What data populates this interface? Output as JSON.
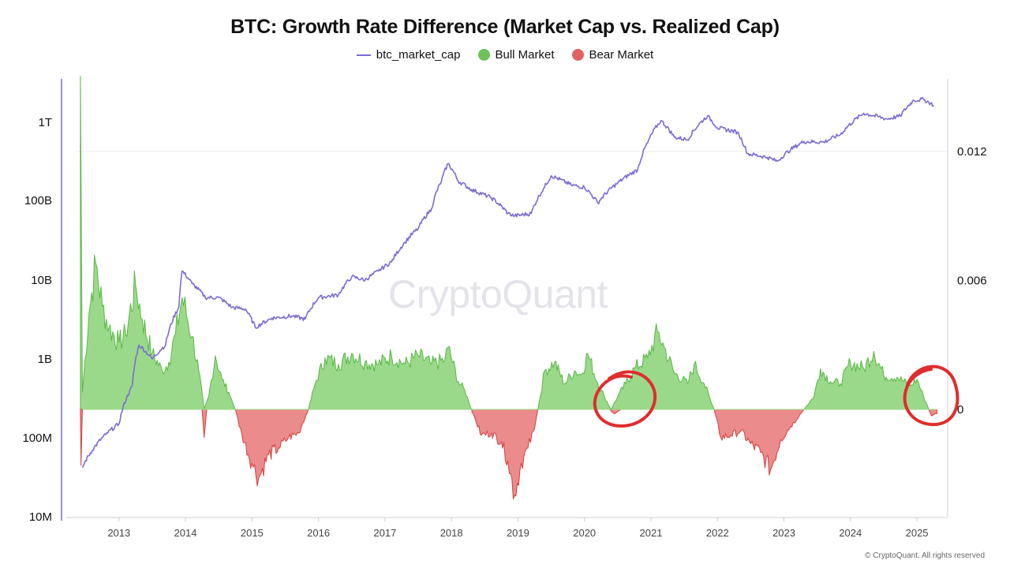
{
  "chart_data": {
    "type": "line",
    "title": "BTC: Growth Rate Difference (Market Cap vs. Realized Cap)",
    "legend": [
      {
        "name": "btc_market_cap",
        "color": "#7b6bd2",
        "marker": "line"
      },
      {
        "name": "Bull Market",
        "color": "#6cc35a",
        "marker": "dot"
      },
      {
        "name": "Bear Market",
        "color": "#e06262",
        "marker": "dot"
      }
    ],
    "x_ticks": [
      "2013",
      "2014",
      "2015",
      "2016",
      "2017",
      "2018",
      "2019",
      "2020",
      "2021",
      "2022",
      "2023",
      "2024",
      "2025"
    ],
    "x_range": [
      2012.35,
      2025.45
    ],
    "left_axis": {
      "scale": "log",
      "ticks": [
        "1T",
        "100B",
        "10B",
        "1B",
        "100M",
        "10M"
      ],
      "range": [
        10000000.0,
        3000000000000.0
      ]
    },
    "right_axis": {
      "ticks": [
        "0.012",
        "0.006",
        "0"
      ],
      "range": [
        -0.005,
        0.0155
      ]
    },
    "series": [
      {
        "name": "btc_market_cap",
        "points": [
          [
            2012.45,
            42000000.0
          ],
          [
            2012.6,
            70000000.0
          ],
          [
            2012.8,
            110000000.0
          ],
          [
            2013.0,
            150000000.0
          ],
          [
            2013.2,
            450000000.0
          ],
          [
            2013.3,
            1500000000.0
          ],
          [
            2013.5,
            1000000000.0
          ],
          [
            2013.7,
            1500000000.0
          ],
          [
            2013.9,
            4500000000.0
          ],
          [
            2013.95,
            13000000000.0
          ],
          [
            2014.1,
            9000000000.0
          ],
          [
            2014.3,
            6000000000.0
          ],
          [
            2014.5,
            6000000000.0
          ],
          [
            2014.7,
            4500000000.0
          ],
          [
            2014.9,
            4300000000.0
          ],
          [
            2015.05,
            2500000000.0
          ],
          [
            2015.3,
            3300000000.0
          ],
          [
            2015.6,
            3500000000.0
          ],
          [
            2015.8,
            3200000000.0
          ],
          [
            2016.0,
            6000000000.0
          ],
          [
            2016.3,
            6500000000.0
          ],
          [
            2016.5,
            11000000000.0
          ],
          [
            2016.7,
            10000000000.0
          ],
          [
            2016.9,
            13000000000.0
          ],
          [
            2017.1,
            17000000000.0
          ],
          [
            2017.3,
            30000000000.0
          ],
          [
            2017.5,
            45000000000.0
          ],
          [
            2017.7,
            80000000000.0
          ],
          [
            2017.85,
            180000000000.0
          ],
          [
            2017.95,
            300000000000.0
          ],
          [
            2018.1,
            180000000000.0
          ],
          [
            2018.3,
            140000000000.0
          ],
          [
            2018.6,
            110000000000.0
          ],
          [
            2018.85,
            70000000000.0
          ],
          [
            2018.95,
            65000000000.0
          ],
          [
            2019.2,
            70000000000.0
          ],
          [
            2019.4,
            150000000000.0
          ],
          [
            2019.5,
            210000000000.0
          ],
          [
            2019.8,
            160000000000.0
          ],
          [
            2020.0,
            150000000000.0
          ],
          [
            2020.2,
            95000000000.0
          ],
          [
            2020.5,
            170000000000.0
          ],
          [
            2020.8,
            250000000000.0
          ],
          [
            2020.95,
            550000000000.0
          ],
          [
            2021.15,
            1050000000000.0
          ],
          [
            2021.35,
            650000000000.0
          ],
          [
            2021.55,
            600000000000.0
          ],
          [
            2021.85,
            1200000000000.0
          ],
          [
            2022.0,
            850000000000.0
          ],
          [
            2022.3,
            750000000000.0
          ],
          [
            2022.45,
            400000000000.0
          ],
          [
            2022.75,
            360000000000.0
          ],
          [
            2022.9,
            320000000000.0
          ],
          [
            2023.1,
            450000000000.0
          ],
          [
            2023.3,
            570000000000.0
          ],
          [
            2023.6,
            560000000000.0
          ],
          [
            2023.85,
            700000000000.0
          ],
          [
            2024.2,
            1300000000000.0
          ],
          [
            2024.55,
            1100000000000.0
          ],
          [
            2024.75,
            1200000000000.0
          ],
          [
            2024.95,
            1900000000000.0
          ],
          [
            2025.1,
            1950000000000.0
          ],
          [
            2025.25,
            1650000000000.0
          ]
        ]
      },
      {
        "name": "Bull Market",
        "points": [
          [
            2012.42,
            0.0155
          ],
          [
            2012.45,
            0.0008
          ],
          [
            2012.55,
            0.0045
          ],
          [
            2012.65,
            0.0068
          ],
          [
            2012.75,
            0.0048
          ],
          [
            2012.85,
            0.0038
          ],
          [
            2013.0,
            0.0031
          ],
          [
            2013.1,
            0.0035
          ],
          [
            2013.25,
            0.0058
          ],
          [
            2013.35,
            0.0042
          ],
          [
            2013.5,
            0.0026
          ],
          [
            2013.65,
            0.0018
          ],
          [
            2013.75,
            0.0022
          ],
          [
            2013.85,
            0.0035
          ],
          [
            2013.95,
            0.0052
          ],
          [
            2014.1,
            0.0034
          ],
          [
            2014.2,
            0.0018
          ],
          [
            2014.28,
            0.0
          ],
          [
            2014.35,
            0.0006
          ],
          [
            2014.45,
            0.0025
          ],
          [
            2014.55,
            0.0014
          ],
          [
            2014.65,
            0.0008
          ],
          [
            2014.75,
            0.0
          ],
          [
            2015.85,
            0.0
          ],
          [
            2015.95,
            0.0012
          ],
          [
            2016.1,
            0.0024
          ],
          [
            2016.3,
            0.0021
          ],
          [
            2016.5,
            0.0026
          ],
          [
            2016.7,
            0.0022
          ],
          [
            2016.9,
            0.0021
          ],
          [
            2017.1,
            0.0025
          ],
          [
            2017.3,
            0.0021
          ],
          [
            2017.5,
            0.0025
          ],
          [
            2017.7,
            0.0021
          ],
          [
            2017.9,
            0.0023
          ],
          [
            2017.95,
            0.0029
          ],
          [
            2018.1,
            0.0013
          ],
          [
            2018.2,
            0.0009
          ],
          [
            2018.3,
            0.0
          ],
          [
            2019.3,
            0.0
          ],
          [
            2019.4,
            0.0018
          ],
          [
            2019.55,
            0.0022
          ],
          [
            2019.7,
            0.0012
          ],
          [
            2019.85,
            0.0018
          ],
          [
            2019.95,
            0.0016
          ],
          [
            2020.05,
            0.0026
          ],
          [
            2020.2,
            0.0012
          ],
          [
            2020.3,
            0.0006
          ],
          [
            2020.4,
            0.0
          ],
          [
            2020.5,
            0.0006
          ],
          [
            2020.62,
            0.0012
          ],
          [
            2020.75,
            0.0019
          ],
          [
            2020.95,
            0.0024
          ],
          [
            2021.1,
            0.0036
          ],
          [
            2021.2,
            0.0029
          ],
          [
            2021.35,
            0.0017
          ],
          [
            2021.55,
            0.0012
          ],
          [
            2021.65,
            0.0021
          ],
          [
            2021.8,
            0.0012
          ],
          [
            2021.95,
            0.0
          ],
          [
            2023.3,
            0.0
          ],
          [
            2023.45,
            0.0006
          ],
          [
            2023.55,
            0.0019
          ],
          [
            2023.7,
            0.0013
          ],
          [
            2023.85,
            0.0012
          ],
          [
            2024.0,
            0.0022
          ],
          [
            2024.2,
            0.0019
          ],
          [
            2024.35,
            0.0027
          ],
          [
            2024.5,
            0.0016
          ],
          [
            2024.7,
            0.0015
          ],
          [
            2024.9,
            0.0011
          ],
          [
            2025.0,
            0.0014
          ],
          [
            2025.1,
            0.0006
          ],
          [
            2025.18,
            0.0
          ]
        ]
      },
      {
        "name": "Bear Market",
        "points": [
          [
            2012.42,
            0.0
          ],
          [
            2012.43,
            -0.0026
          ],
          [
            2012.45,
            0.0
          ],
          [
            2014.25,
            0.0
          ],
          [
            2014.28,
            -0.0013
          ],
          [
            2014.32,
            0.0
          ],
          [
            2014.75,
            0.0
          ],
          [
            2014.85,
            -0.0012
          ],
          [
            2015.0,
            -0.0025
          ],
          [
            2015.1,
            -0.0032
          ],
          [
            2015.25,
            -0.0021
          ],
          [
            2015.4,
            -0.0018
          ],
          [
            2015.55,
            -0.0013
          ],
          [
            2015.7,
            -0.0011
          ],
          [
            2015.85,
            0.0
          ],
          [
            2018.3,
            0.0
          ],
          [
            2018.45,
            -0.0012
          ],
          [
            2018.6,
            -0.0011
          ],
          [
            2018.75,
            -0.0015
          ],
          [
            2018.85,
            -0.0024
          ],
          [
            2018.95,
            -0.004
          ],
          [
            2019.05,
            -0.0025
          ],
          [
            2019.15,
            -0.0018
          ],
          [
            2019.25,
            -0.0009
          ],
          [
            2019.3,
            0.0
          ],
          [
            2020.38,
            0.0
          ],
          [
            2020.45,
            -0.0002
          ],
          [
            2020.55,
            0.0
          ],
          [
            2021.95,
            0.0
          ],
          [
            2022.05,
            -0.0013
          ],
          [
            2022.2,
            -0.0012
          ],
          [
            2022.35,
            -0.001
          ],
          [
            2022.5,
            -0.0016
          ],
          [
            2022.65,
            -0.002
          ],
          [
            2022.8,
            -0.0028
          ],
          [
            2022.95,
            -0.0014
          ],
          [
            2023.1,
            -0.0008
          ],
          [
            2023.3,
            0.0
          ],
          [
            2025.18,
            0.0
          ],
          [
            2025.22,
            -0.0003
          ],
          [
            2025.3,
            -0.0002
          ],
          [
            2025.3,
            0.0
          ]
        ]
      }
    ]
  },
  "footer": "© CryptoQuant. All rights reserved",
  "watermark": "CryptoQuant"
}
